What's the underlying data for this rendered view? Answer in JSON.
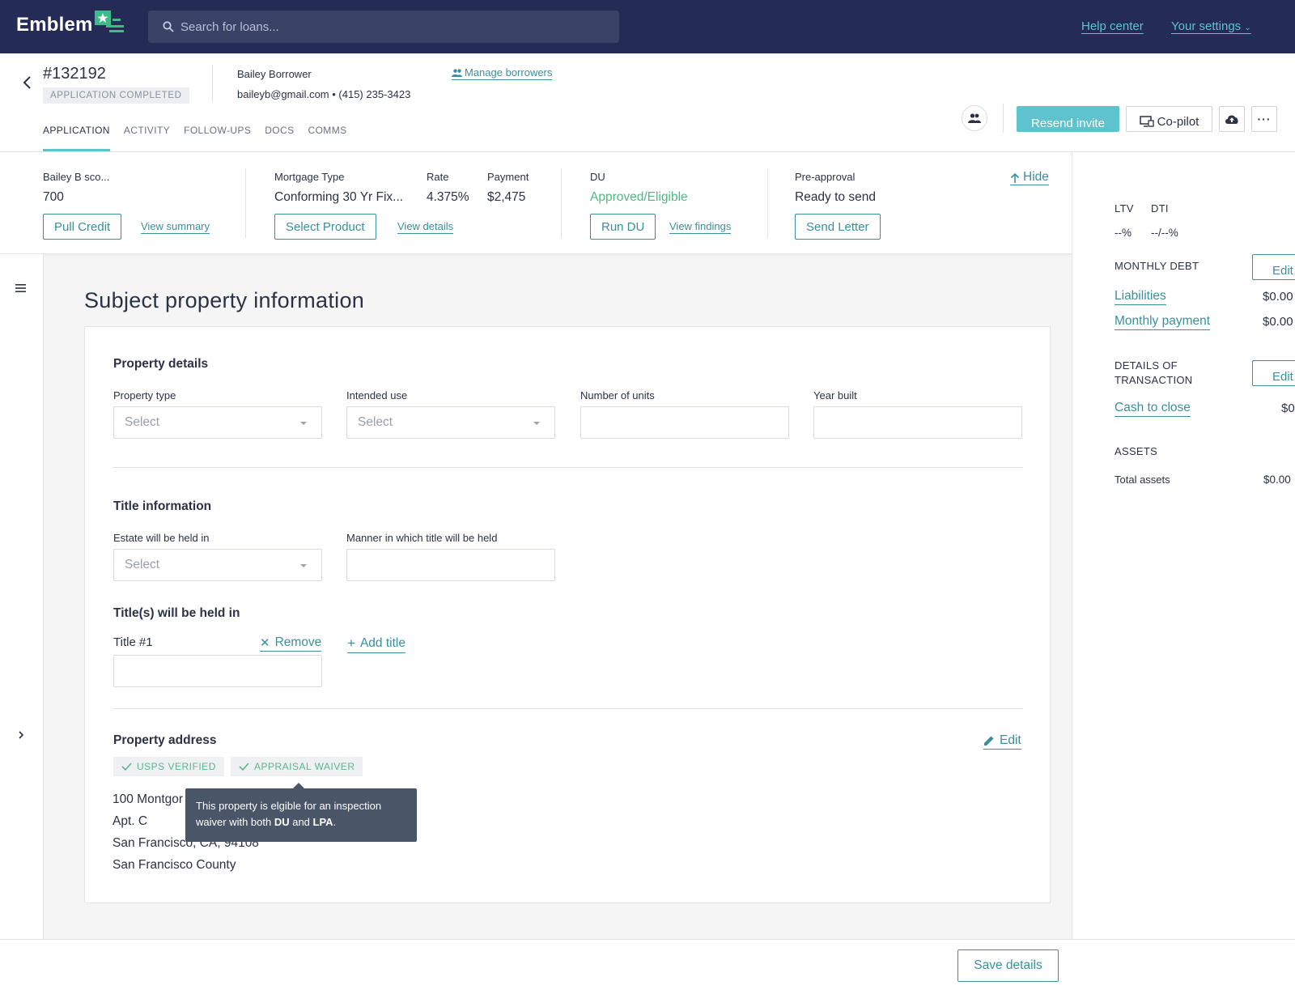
{
  "brand": {
    "name": "Emblem",
    "accent": "#5ec3cd",
    "nav_bg": "#242c56",
    "mark_green": "#3dbb8a"
  },
  "search": {
    "placeholder": "Search for loans..."
  },
  "topnav": {
    "help": "Help center",
    "settings": "Your settings"
  },
  "header": {
    "loan_id": "#132192",
    "status": "APPLICATION COMPLETED",
    "borrower_name": "Bailey Borrower",
    "borrower_contact": "baileyb@gmail.com • (415) 235-3423",
    "manage_borrowers": "Manage borrowers",
    "tabs": [
      {
        "label": "APPLICATION",
        "active": true
      },
      {
        "label": "ACTIVITY",
        "active": false
      },
      {
        "label": "FOLLOW-UPS",
        "active": false
      },
      {
        "label": "DOCS",
        "active": false
      },
      {
        "label": "COMMS",
        "active": false
      }
    ],
    "resend_invite": "Resend invite",
    "copilot": "Co-pilot"
  },
  "summary": {
    "credit": {
      "label": "Bailey B sco...",
      "value": "700",
      "button": "Pull Credit",
      "link": "View summary"
    },
    "mortgage": {
      "type_label": "Mortgage Type",
      "type_value": "Conforming 30 Yr Fix...",
      "rate_label": "Rate",
      "rate_value": "4.375%",
      "payment_label": "Payment",
      "payment_value": "$2,475",
      "button": "Select Product",
      "link": "View details"
    },
    "du": {
      "label": "DU",
      "value": "Approved/Eligible",
      "value_color": "#4cbb7e",
      "button": "Run DU",
      "link": "View findings"
    },
    "preapproval": {
      "label": "Pre-approval",
      "value": "Ready to send",
      "button": "Send Letter"
    },
    "hide": "Hide"
  },
  "main": {
    "title": "Subject property information",
    "property_details": {
      "title": "Property details",
      "property_type": {
        "label": "Property type",
        "value": "Select"
      },
      "intended_use": {
        "label": "Intended use",
        "value": "Select"
      },
      "number_of_units": {
        "label": "Number of units",
        "value": ""
      },
      "year_built": {
        "label": "Year built",
        "value": ""
      }
    },
    "title_information": {
      "title": "Title information",
      "estate": {
        "label": "Estate will be held in",
        "value": "Select"
      },
      "manner": {
        "label": "Manner in which title will be held",
        "value": ""
      }
    },
    "titles_held": {
      "title": "Title(s) will be held in",
      "title1_label": "Title #1",
      "remove": "Remove",
      "add_title": "Add title",
      "title1_value": ""
    },
    "property_address": {
      "title": "Property address",
      "edit": "Edit",
      "badges": [
        "USPS VERIFIED",
        "APPRAISAL WAIVER"
      ],
      "lines": [
        "100 Montgor",
        "Apt. C",
        "San Francisco, CA, 94108",
        "San Francisco County"
      ],
      "tooltip_pre": "This property is elgible for an inspection waiver with both ",
      "tooltip_du": "DU",
      "tooltip_mid": " and ",
      "tooltip_lpa": "LPA",
      "tooltip_post": "."
    }
  },
  "rightpanel": {
    "ltv_label": "LTV",
    "dti_label": "DTI",
    "ltv_value": "--%",
    "dti_value": "--/--%",
    "monthly_debt": "MONTHLY DEBT",
    "edit": "Edit",
    "liabilities": "Liabilities",
    "liabilities_value": "$0.00",
    "monthly_payment": "Monthly payment",
    "monthly_payment_value": "$0.00",
    "details_line1": "DETAILS OF",
    "details_line2": "TRANSACTION",
    "cash_to_close": "Cash to close",
    "cash_to_close_value": "$0",
    "assets": "ASSETS",
    "total_assets": "Total assets",
    "total_assets_value": "$0.00"
  },
  "footer": {
    "save": "Save details"
  }
}
